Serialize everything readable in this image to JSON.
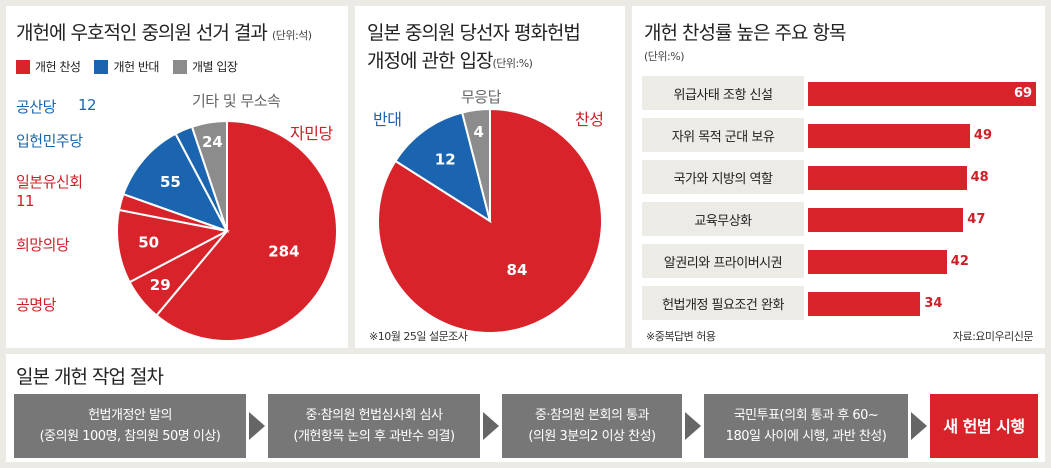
{
  "colors": {
    "red": "#d8232a",
    "blue": "#1b65b0",
    "gray": "#8c8c8c"
  },
  "chart_data": [
    {
      "type": "pie",
      "title": "개헌에 우호적인 중의원 선거 결과",
      "unit": "(단위:석)",
      "legend": [
        "개헌 찬성",
        "개헌 반대",
        "개별 입장"
      ],
      "slices": [
        {
          "name": "자민당",
          "value": 284,
          "group": "red"
        },
        {
          "name": "공명당",
          "value": 29,
          "group": "red"
        },
        {
          "name": "희망의당",
          "value": 50,
          "group": "red"
        },
        {
          "name": "일본유신회",
          "value": 11,
          "group": "red"
        },
        {
          "name": "입헌민주당",
          "value": 55,
          "group": "blue"
        },
        {
          "name": "공산당",
          "value": 12,
          "group": "blue"
        },
        {
          "name": "기타 및 무소속",
          "value": 24,
          "group": "gray"
        }
      ]
    },
    {
      "type": "pie",
      "title_line1": "일본 중의원 당선자 평화헌법",
      "title_line2": "개정에 관한 입장",
      "unit": "(단위:%)",
      "slices": [
        {
          "name": "찬성",
          "value": 84,
          "group": "red"
        },
        {
          "name": "반대",
          "value": 12,
          "group": "blue"
        },
        {
          "name": "무응답",
          "value": 4,
          "group": "gray"
        }
      ],
      "note": "※10월 25일 설문조사"
    },
    {
      "type": "bar",
      "orientation": "horizontal",
      "title": "개헌 찬성률 높은 주요 항목",
      "unit": "(단위:%)",
      "categories": [
        "위급사태 조항 신설",
        "자위 목적 군대 보유",
        "국가와 지방의 역할",
        "교육무상화",
        "알권리와 프라이버시권",
        "헌법개정 필요조건 완화"
      ],
      "values": [
        69,
        49,
        48,
        47,
        42,
        34
      ],
      "xlim": [
        0,
        69
      ],
      "note": "※중복답변 허용",
      "source": "자료:요미우리신문"
    }
  ],
  "process": {
    "title": "일본 개헌 작업 절차",
    "steps": [
      {
        "line1": "헌법개정안 발의",
        "line2": "(중의원 100명, 참의원 50명 이상)"
      },
      {
        "line1": "중·참의원 헌법심사회 심사",
        "line2": "(개헌항목 논의 후 과반수 의결)"
      },
      {
        "line1": "중·참의원 본회의 통과",
        "line2": "(의원 3분의2 이상 찬성)"
      },
      {
        "line1": "국민투표(의회 통과 후 60~",
        "line2": "180일 사이에 시행, 과반 찬성)"
      }
    ],
    "final": "새 헌법 시행"
  }
}
